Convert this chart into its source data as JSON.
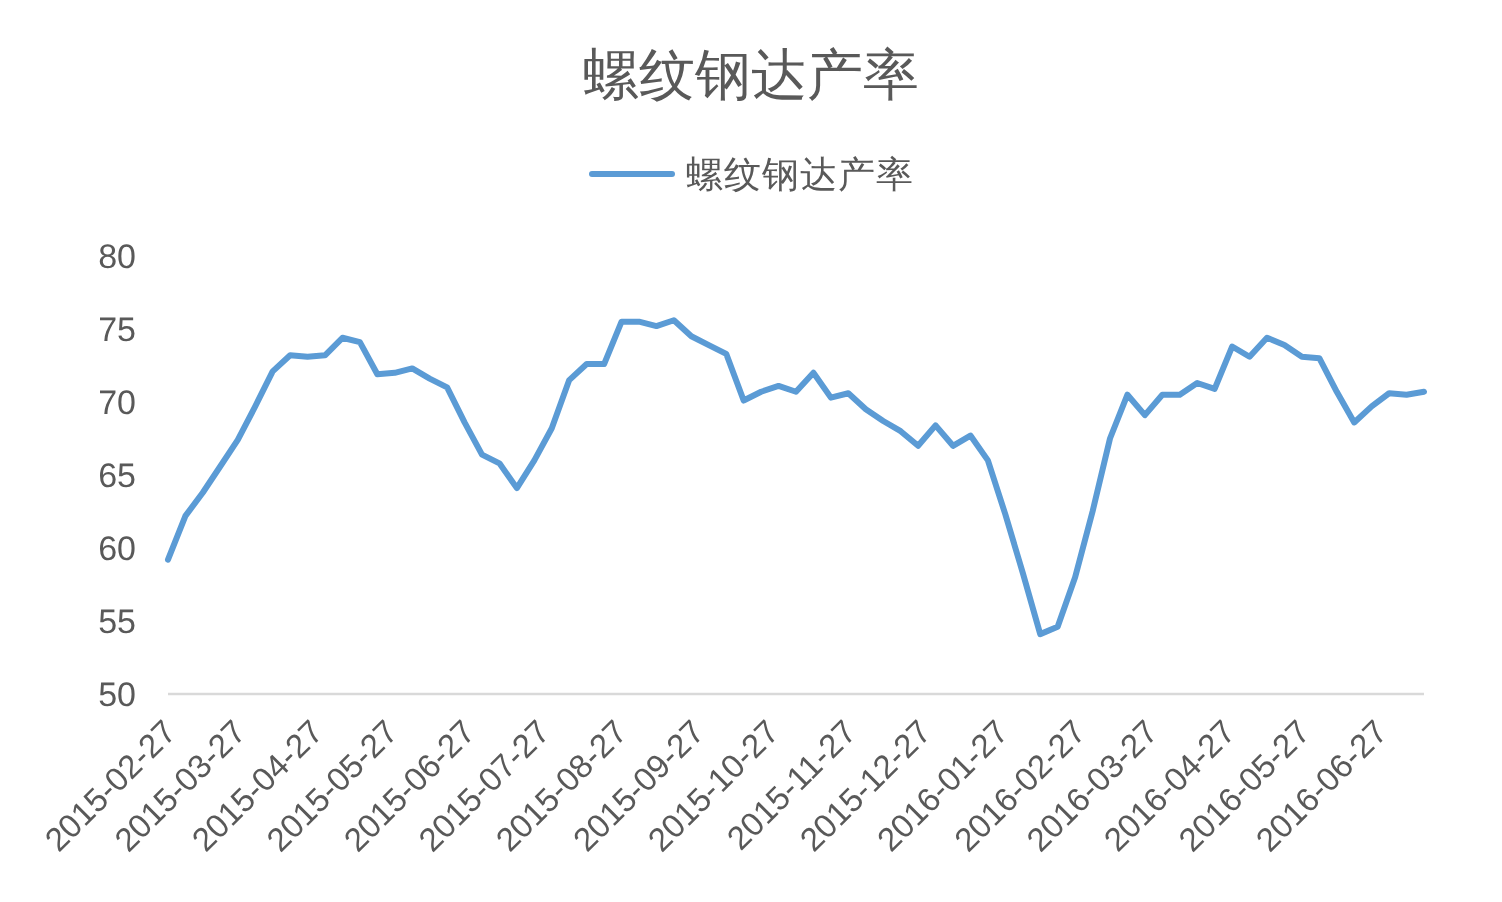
{
  "chart_data": {
    "type": "line",
    "title": "螺纹钢达产率",
    "legend": "top",
    "x": [
      "2015-02-27",
      "2015-03-06",
      "2015-03-13",
      "2015-03-20",
      "2015-03-27",
      "2015-04-03",
      "2015-04-10",
      "2015-04-17",
      "2015-04-24",
      "2015-05-01",
      "2015-05-08",
      "2015-05-15",
      "2015-05-22",
      "2015-05-29",
      "2015-06-05",
      "2015-06-12",
      "2015-06-19",
      "2015-06-26",
      "2015-07-03",
      "2015-07-10",
      "2015-07-17",
      "2015-07-24",
      "2015-07-31",
      "2015-08-07",
      "2015-08-14",
      "2015-08-21",
      "2015-08-28",
      "2015-09-04",
      "2015-09-11",
      "2015-09-18",
      "2015-09-25",
      "2015-10-02",
      "2015-10-09",
      "2015-10-16",
      "2015-10-23",
      "2015-10-30",
      "2015-11-06",
      "2015-11-13",
      "2015-11-20",
      "2015-11-27",
      "2015-12-04",
      "2015-12-11",
      "2015-12-18",
      "2015-12-25",
      "2016-01-01",
      "2016-01-08",
      "2016-01-15",
      "2016-01-22",
      "2016-01-29",
      "2016-02-05",
      "2016-02-12",
      "2016-02-19",
      "2016-02-26",
      "2016-03-04",
      "2016-03-11",
      "2016-03-18",
      "2016-03-25",
      "2016-04-01",
      "2016-04-08",
      "2016-04-15",
      "2016-04-22",
      "2016-04-29",
      "2016-05-06",
      "2016-05-13",
      "2016-05-20",
      "2016-05-27",
      "2016-06-03",
      "2016-06-10",
      "2016-06-17",
      "2016-06-24",
      "2016-07-01",
      "2016-07-08",
      "2016-07-15"
    ],
    "series": [
      {
        "name": "螺纹钢达产率",
        "color": "#5b9bd5",
        "values": [
          59.2,
          62.2,
          63.8,
          65.6,
          67.4,
          69.7,
          72.1,
          73.2,
          73.1,
          73.2,
          74.4,
          74.1,
          71.9,
          72.0,
          72.3,
          71.6,
          71.0,
          68.6,
          66.4,
          65.8,
          64.1,
          66.0,
          68.2,
          71.5,
          72.6,
          72.6,
          75.5,
          75.5,
          75.2,
          75.6,
          74.5,
          73.9,
          73.3,
          70.1,
          70.7,
          71.1,
          70.7,
          72.0,
          70.3,
          70.6,
          69.5,
          68.7,
          68.0,
          67.0,
          68.4,
          67.0,
          67.7,
          66.0,
          62.3,
          58.3,
          54.1,
          54.6,
          58.0,
          62.5,
          67.5,
          70.5,
          69.1,
          70.5,
          70.5,
          71.3,
          70.9,
          73.8,
          73.1,
          74.4,
          73.9,
          73.1,
          73.0,
          70.7,
          68.6,
          69.7,
          70.6,
          70.5,
          70.7
        ]
      }
    ],
    "xlim": [
      "2015-02-27",
      "2016-07-15"
    ],
    "xticks": [
      "2015-02-27",
      "2015-03-27",
      "2015-04-27",
      "2015-05-27",
      "2015-06-27",
      "2015-07-27",
      "2015-08-27",
      "2015-09-27",
      "2015-10-27",
      "2015-11-27",
      "2015-12-27",
      "2016-01-27",
      "2016-02-27",
      "2016-03-27",
      "2016-04-27",
      "2016-05-27",
      "2016-06-27"
    ],
    "ylim": [
      50,
      80
    ],
    "yticks": [
      50,
      55,
      60,
      65,
      70,
      75,
      80
    ]
  }
}
